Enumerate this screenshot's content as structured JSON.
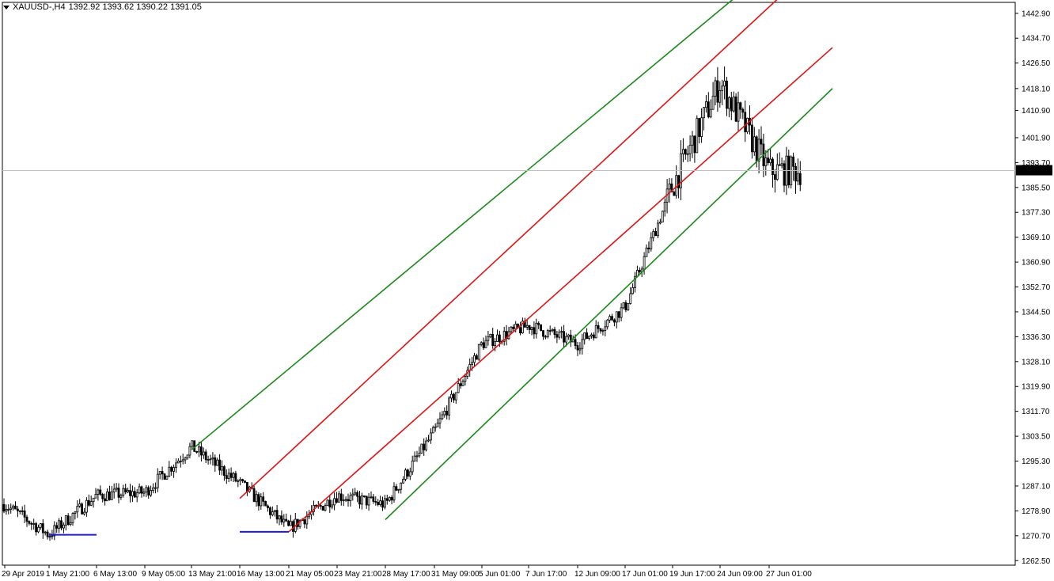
{
  "header": {
    "symbol": "XAUUSD-,H4",
    "ohlc": "1392.92 1393.62 1390.22 1391.05"
  },
  "colors": {
    "background": "#ffffff",
    "candle": "#000000",
    "outer_channel": "#1a8a1a",
    "inner_channel": "#e01414",
    "support": "#1c1cd8",
    "current_price_line": "#c0c0c0",
    "price_label_bg": "#000000"
  },
  "chart_data": {
    "type": "candlestick",
    "instrument": "XAUUSD-",
    "timeframe": "H4",
    "y_ticks": [
      "1442.90",
      "1434.70",
      "1426.50",
      "1418.10",
      "1410.90",
      "1401.90",
      "1393.70",
      "1385.50",
      "1377.30",
      "1369.10",
      "1360.90",
      "1352.70",
      "1344.50",
      "1336.30",
      "1328.10",
      "1319.90",
      "1311.70",
      "1303.50",
      "1295.30",
      "1287.10",
      "1278.90",
      "1270.70",
      "1262.50"
    ],
    "ylim": [
      1261.0,
      1446.5
    ],
    "x_labels": [
      "29 Apr 2019",
      "1 May 21:00",
      "6 May 13:00",
      "9 May 05:00",
      "13 May 21:00",
      "16 May 13:00",
      "21 May 05:00",
      "23 May 21:00",
      "28 May 17:00",
      "31 May 09:00",
      "5 Jun 01:00",
      "7 Jun 17:00",
      "12 Jun 09:00",
      "17 Jun 01:00",
      "19 Jun 17:00",
      "24 Jun 09:00",
      "27 Jun 01:00"
    ],
    "current_price": "1391.05",
    "key_closes": [
      {
        "label": "29 Apr 2019",
        "close": 1281
      },
      {
        "label": "1 May 21:00",
        "close": 1271
      },
      {
        "label": "6 May 13:00",
        "close": 1284
      },
      {
        "label": "9 May 05:00",
        "close": 1285
      },
      {
        "label": "13 May 21:00",
        "close": 1300
      },
      {
        "label": "16 May 13:00",
        "close": 1288
      },
      {
        "label": "21 May 05:00",
        "close": 1273
      },
      {
        "label": "23 May 21:00",
        "close": 1284
      },
      {
        "label": "28 May 17:00",
        "close": 1281
      },
      {
        "label": "31 May 09:00",
        "close": 1305
      },
      {
        "label": "5 Jun 01:00",
        "close": 1334
      },
      {
        "label": "7 Jun 17:00",
        "close": 1340
      },
      {
        "label": "12 Jun 09:00",
        "close": 1334
      },
      {
        "label": "17 Jun 01:00",
        "close": 1346
      },
      {
        "label": "19 Jun 17:00",
        "close": 1386
      },
      {
        "label": "24 Jun 09:00",
        "close": 1420
      },
      {
        "label": "27 Jun 01:00",
        "close": 1391
      }
    ],
    "trend_lines": [
      {
        "name": "outer-channel-upper",
        "color": "outer_channel",
        "from": [
          "13 May 21:00",
          1299
        ],
        "to": [
          "24 Jun 09:00",
          1444
        ]
      },
      {
        "name": "outer-channel-lower",
        "color": "outer_channel",
        "from": [
          "28 May 17:00",
          1276
        ],
        "to": [
          "27 Jun 01:00",
          1398
        ]
      },
      {
        "name": "inner-channel-upper",
        "color": "inner_channel",
        "from": [
          "16 May 13:00",
          1283
        ],
        "to": [
          "24 Jun 09:00",
          1430
        ]
      },
      {
        "name": "inner-channel-lower",
        "color": "inner_channel",
        "from": [
          "21 May 05:00",
          1272
        ],
        "to": [
          "27 Jun 01:00",
          1413
        ]
      },
      {
        "name": "support-1",
        "color": "support",
        "from": [
          "1 May 21:00",
          1271
        ],
        "to": [
          "6 May 13:00",
          1271
        ]
      },
      {
        "name": "support-2",
        "color": "support",
        "from": [
          "16 May 13:00",
          1272
        ],
        "to": [
          "21 May 05:00",
          1272
        ]
      }
    ]
  }
}
